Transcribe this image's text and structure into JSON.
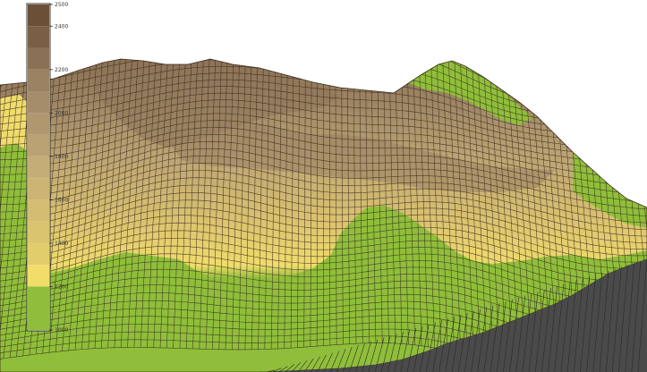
{
  "legend": {
    "ticks": [
      {
        "value": 2500,
        "label": "2500"
      },
      {
        "value": 2400,
        "label": "2400"
      },
      {
        "value": 2200,
        "label": "2200"
      },
      {
        "value": 2000,
        "label": "2000"
      },
      {
        "value": 1800,
        "label": "1800"
      },
      {
        "value": 1600,
        "label": "1600"
      },
      {
        "value": 1400,
        "label": "1400"
      },
      {
        "value": 1200,
        "label": "1200"
      },
      {
        "value": 1000,
        "label": "1000"
      }
    ],
    "bands": [
      {
        "from": 2400,
        "to": 2500,
        "color": "#6b4f37"
      },
      {
        "from": 2300,
        "to": 2400,
        "color": "#7a5f45"
      },
      {
        "from": 2200,
        "to": 2300,
        "color": "#8a7054"
      },
      {
        "from": 2100,
        "to": 2200,
        "color": "#9a8262"
      },
      {
        "from": 2000,
        "to": 2100,
        "color": "#a58d6b"
      },
      {
        "from": 1900,
        "to": 2000,
        "color": "#b09770"
      },
      {
        "from": 1800,
        "to": 1900,
        "color": "#baa273"
      },
      {
        "from": 1700,
        "to": 1800,
        "color": "#c4ad76"
      },
      {
        "from": 1600,
        "to": 1700,
        "color": "#ccb574"
      },
      {
        "from": 1500,
        "to": 1600,
        "color": "#d3bd72"
      },
      {
        "from": 1400,
        "to": 1500,
        "color": "#d9c46f"
      },
      {
        "from": 1300,
        "to": 1400,
        "color": "#e2cd6c"
      },
      {
        "from": 1200,
        "to": 1300,
        "color": "#f2dc6a"
      },
      {
        "from": 1000,
        "to": 1200,
        "color": "#8fbf3a"
      }
    ]
  },
  "colors": {
    "mesh_line": "#3a2a1e",
    "base_wall": "#4a4a4a",
    "low_green": "#8fbf3a",
    "mid_yellow": "#e8d46b",
    "high_brown": "#8b7355"
  }
}
